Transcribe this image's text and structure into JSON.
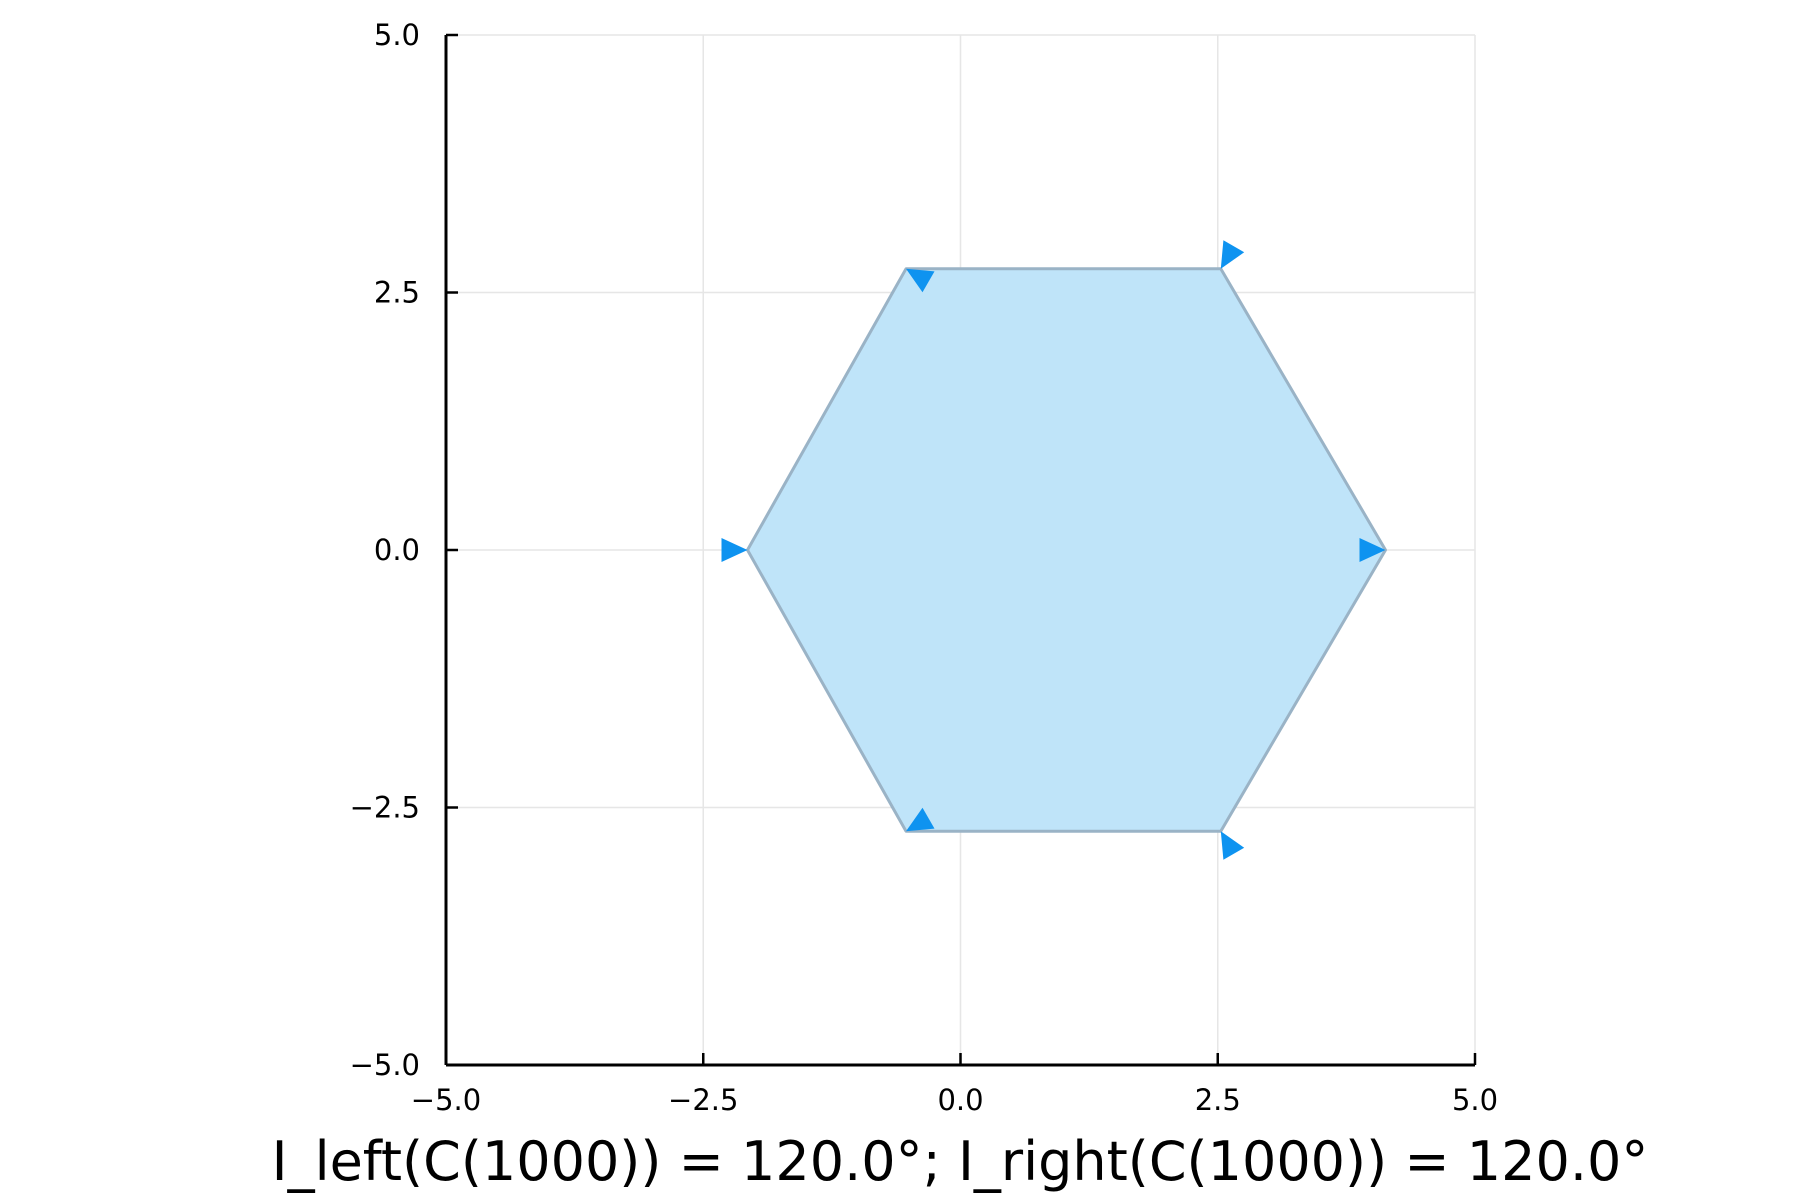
{
  "chart_data": {
    "type": "polygon",
    "title": "",
    "xlabel": "I_left(C(1000)) = 120.0°; I_right(C(1000)) = 120.0°",
    "ylabel": "",
    "xlim": [
      -5.0,
      5.0
    ],
    "ylim": [
      -5.0,
      5.0
    ],
    "xticks": [
      -5.0,
      -2.5,
      0.0,
      2.5,
      5.0
    ],
    "yticks": [
      -5.0,
      -2.5,
      0.0,
      2.5,
      5.0
    ],
    "xtick_labels": [
      "−5.0",
      "−2.5",
      "0.0",
      "2.5",
      "5.0"
    ],
    "ytick_labels": [
      "−5.0",
      "−2.5",
      "0.0",
      "2.5",
      "5.0"
    ],
    "grid": true,
    "legend": "none",
    "aspect": "equal",
    "polygon": {
      "vertices": [
        [
          4.13,
          0.0
        ],
        [
          2.53,
          2.73
        ],
        [
          -0.53,
          2.73
        ],
        [
          -2.07,
          0.0
        ],
        [
          -0.53,
          -2.73
        ],
        [
          2.53,
          -2.73
        ]
      ],
      "fill_color": "#bfe4f9",
      "edge_color": "#9ab3c6"
    },
    "arrows": {
      "color": "#0e93f0",
      "points": [
        {
          "x": 4.13,
          "y": 0.0,
          "angle_deg": 0
        },
        {
          "x": 2.53,
          "y": 2.73,
          "angle_deg": 240
        },
        {
          "x": -0.53,
          "y": 2.73,
          "angle_deg": 150
        },
        {
          "x": -2.07,
          "y": 0.0,
          "angle_deg": 0
        },
        {
          "x": -0.53,
          "y": -2.73,
          "angle_deg": 210
        },
        {
          "x": 2.53,
          "y": -2.73,
          "angle_deg": 120
        }
      ]
    }
  }
}
